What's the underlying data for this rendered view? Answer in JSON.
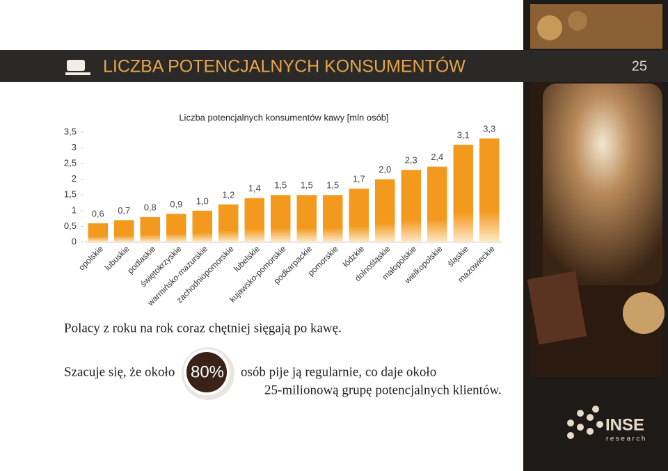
{
  "header": {
    "title": "LICZBA POTENCJALNYCH KONSUMENTÓW",
    "page": "25"
  },
  "chart_data": {
    "type": "bar",
    "title": "Liczba potencjalnych konsumentów kawy [mln osób]",
    "categories": [
      "opolskie",
      "lubuskie",
      "podlaskie",
      "świętokrzyskie",
      "warmińsko-mazurskie",
      "zachodniopomorskie",
      "lubelskie",
      "kujawsko-pomorskie",
      "podkarpackie",
      "pomorskie",
      "łódzkie",
      "dolnośląskie",
      "małopolskie",
      "wielkopolskie",
      "śląskie",
      "mazowieckie"
    ],
    "values": [
      0.6,
      0.7,
      0.8,
      0.9,
      1.0,
      1.2,
      1.4,
      1.5,
      1.5,
      1.5,
      1.7,
      2.0,
      2.3,
      2.4,
      3.1,
      3.3
    ],
    "value_labels": [
      "0,6",
      "0,7",
      "0,8",
      "0,9",
      "1,0",
      "1,2",
      "1,4",
      "1,5",
      "1,5",
      "1,5",
      "1,7",
      "2,0",
      "2,3",
      "2,4",
      "3,1",
      "3,3"
    ],
    "color": "#f39a1e",
    "ylim": [
      0,
      3.5
    ],
    "yticks": [
      0,
      {
        "value": 0.5,
        "label": "0,5"
      },
      1,
      {
        "value": 1.5,
        "label": "1,5"
      },
      2,
      {
        "value": 2.5,
        "label": "2,5"
      },
      3,
      {
        "value": 3.5,
        "label": "3,5"
      }
    ]
  },
  "text": {
    "line1": "Polacy z roku na rok coraz chętniej sięgają po kawę.",
    "line2a": "Szacuje się, że około",
    "highlight": "80%",
    "line2b": "osób pije ją regularnie, co daje około",
    "line2c": "25-milionową grupę potencjalnych klientów."
  },
  "logo": {
    "name": "INSE",
    "sub": "research"
  }
}
